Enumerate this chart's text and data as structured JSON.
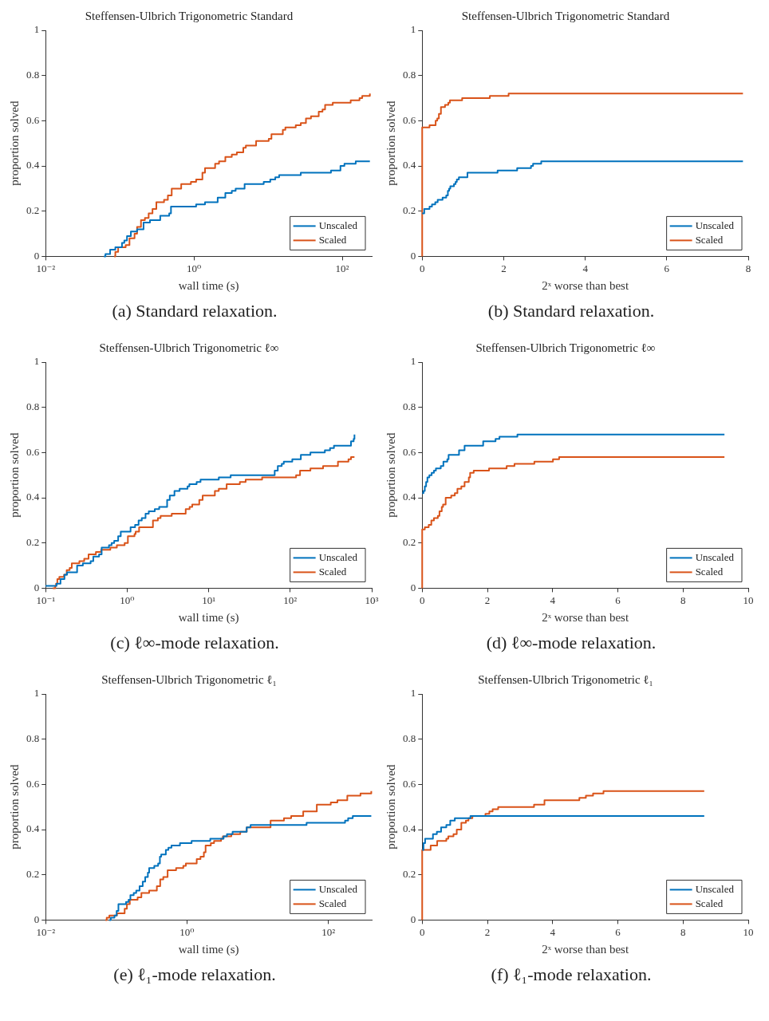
{
  "chart_data": [
    {
      "type": "step",
      "title": "Steffensen-Ulbrich Trigonometric Standard",
      "xlabel": "wall time (s)",
      "ylabel": "proportion solved",
      "log": "x",
      "xlim": [
        0.01,
        250
      ],
      "xticks": [
        {
          "value": 0.01,
          "label": "10⁻²"
        },
        {
          "value": 1,
          "label": "10⁰"
        },
        {
          "value": 100,
          "label": "10²"
        }
      ],
      "ylim": [
        0,
        1
      ],
      "yticks": [
        0,
        0.2,
        0.4,
        0.6,
        0.8,
        1
      ],
      "grid": false,
      "legend": "bottom right",
      "marker": "none",
      "line_style": "solid",
      "annotations": [
        "(a) Standard relaxation."
      ],
      "series": [
        {
          "name": "Unscaled",
          "color": "#0072bd",
          "x": [
            0.061,
            0.064,
            0.074,
            0.087,
            0.107,
            0.115,
            0.125,
            0.141,
            0.171,
            0.209,
            0.255,
            0.351,
            0.464,
            0.49,
            1.07,
            1.41,
            2.09,
            2.65,
            3.24,
            3.65,
            4.82,
            8.73,
            10.7,
            12.5,
            14.1,
            27.6,
            70.5,
            94.6,
            107,
            152,
            236
          ],
          "values": [
            0,
            0.01,
            0.03,
            0.04,
            0.06,
            0.07,
            0.09,
            0.11,
            0.12,
            0.15,
            0.16,
            0.18,
            0.19,
            0.22,
            0.23,
            0.24,
            0.26,
            0.28,
            0.29,
            0.3,
            0.32,
            0.33,
            0.34,
            0.35,
            0.36,
            0.37,
            0.38,
            0.4,
            0.41,
            0.42,
            0.42
          ]
        },
        {
          "name": "Scaled",
          "color": "#d95319",
          "x": [
            0.084,
            0.087,
            0.095,
            0.12,
            0.135,
            0.158,
            0.171,
            0.193,
            0.218,
            0.245,
            0.276,
            0.311,
            0.395,
            0.445,
            0.501,
            0.673,
            0.91,
            1.07,
            1.3,
            1.41,
            1.93,
            2.18,
            2.65,
            3.24,
            3.79,
            4.63,
            5.01,
            6.89,
            10.2,
            11.1,
            15.8,
            17.1,
            23.6,
            27.6,
            32.4,
            37.9,
            48.2,
            54.2,
            58.7,
            74.5,
            130,
            171,
            186,
            236
          ],
          "values": [
            0,
            0.02,
            0.04,
            0.05,
            0.08,
            0.1,
            0.13,
            0.16,
            0.17,
            0.19,
            0.21,
            0.24,
            0.25,
            0.27,
            0.3,
            0.32,
            0.33,
            0.34,
            0.37,
            0.39,
            0.41,
            0.42,
            0.44,
            0.45,
            0.46,
            0.48,
            0.49,
            0.51,
            0.52,
            0.54,
            0.56,
            0.57,
            0.58,
            0.59,
            0.61,
            0.62,
            0.64,
            0.65,
            0.67,
            0.68,
            0.69,
            0.7,
            0.71,
            0.72
          ]
        }
      ]
    },
    {
      "type": "step",
      "title": "Steffensen-Ulbrich Trigonometric Standard",
      "xlabel": "2ˣ worse than best",
      "ylabel": "proportion solved",
      "xlim": [
        0,
        8
      ],
      "xticks": [
        0,
        2,
        4,
        6,
        8
      ],
      "ylim": [
        0,
        1
      ],
      "yticks": [
        0,
        0.2,
        0.4,
        0.6,
        0.8,
        1
      ],
      "grid": false,
      "legend": "bottom right",
      "marker": "none",
      "line_style": "solid",
      "annotations": [
        "(b) Standard relaxation."
      ],
      "series": [
        {
          "name": "Unscaled",
          "color": "#0072bd",
          "x": [
            0,
            0.05,
            0.18,
            0.24,
            0.32,
            0.38,
            0.5,
            0.59,
            0.63,
            0.66,
            0.69,
            0.78,
            0.82,
            0.85,
            0.9,
            1.11,
            1.85,
            2.33,
            2.67,
            2.72,
            2.92,
            7.87
          ],
          "values": [
            0.19,
            0.21,
            0.22,
            0.23,
            0.24,
            0.25,
            0.26,
            0.27,
            0.29,
            0.3,
            0.31,
            0.32,
            0.33,
            0.34,
            0.35,
            0.37,
            0.38,
            0.39,
            0.4,
            0.41,
            0.42,
            0.42
          ]
        },
        {
          "name": "Scaled",
          "color": "#d95319",
          "x": [
            0,
            0,
            0.18,
            0.33,
            0.37,
            0.41,
            0.46,
            0.56,
            0.64,
            0.68,
            0.98,
            1.66,
            2.12,
            7.87
          ],
          "values": [
            0,
            0.57,
            0.58,
            0.6,
            0.61,
            0.63,
            0.66,
            0.67,
            0.68,
            0.69,
            0.7,
            0.71,
            0.72,
            0.72
          ]
        }
      ]
    },
    {
      "type": "step",
      "title": "Steffensen-Ulbrich Trigonometric ℓ∞",
      "xlabel": "wall time (s)",
      "ylabel": "proportion solved",
      "log": "x",
      "xlim": [
        0.1,
        1000
      ],
      "xticks": [
        {
          "value": 0.1,
          "label": "10⁻¹"
        },
        {
          "value": 1,
          "label": "10⁰"
        },
        {
          "value": 10,
          "label": "10¹"
        },
        {
          "value": 100,
          "label": "10²"
        },
        {
          "value": 1000,
          "label": "10³"
        }
      ],
      "ylim": [
        0,
        1
      ],
      "yticks": [
        0,
        0.2,
        0.4,
        0.6,
        0.8,
        1
      ],
      "grid": false,
      "legend": "bottom right",
      "marker": "none",
      "line_style": "solid",
      "annotations": [
        "(c) ℓ∞-mode relaxation."
      ],
      "series": [
        {
          "name": "Unscaled",
          "color": "#0072bd",
          "x": [
            0.1,
            0.136,
            0.152,
            0.17,
            0.183,
            0.243,
            0.286,
            0.356,
            0.384,
            0.452,
            0.486,
            0.598,
            0.644,
            0.693,
            0.775,
            0.834,
            1.1,
            1.25,
            1.38,
            1.51,
            1.68,
            1.84,
            2.18,
            2.47,
            3.09,
            3.33,
            3.8,
            4.4,
            5.5,
            5.79,
            7.11,
            7.94,
            13.3,
            18.6,
            64.5,
            70.4,
            78.7,
            83.4,
            106,
            135,
            177,
            266,
            308,
            344,
            557,
            600,
            614
          ],
          "values": [
            0.01,
            0.02,
            0.04,
            0.06,
            0.07,
            0.1,
            0.11,
            0.12,
            0.14,
            0.15,
            0.18,
            0.19,
            0.2,
            0.21,
            0.23,
            0.25,
            0.27,
            0.28,
            0.3,
            0.31,
            0.33,
            0.34,
            0.35,
            0.36,
            0.39,
            0.41,
            0.43,
            0.44,
            0.45,
            0.46,
            0.47,
            0.48,
            0.49,
            0.5,
            0.52,
            0.54,
            0.55,
            0.56,
            0.57,
            0.59,
            0.6,
            0.61,
            0.62,
            0.63,
            0.65,
            0.66,
            0.68
          ]
        },
        {
          "name": "Scaled",
          "color": "#d95319",
          "x": [
            0.122,
            0.131,
            0.134,
            0.139,
            0.147,
            0.168,
            0.181,
            0.197,
            0.209,
            0.259,
            0.297,
            0.336,
            0.413,
            0.479,
            0.621,
            0.747,
            0.931,
            1.02,
            1.23,
            1.27,
            1.4,
            2.07,
            2.38,
            2.57,
            3.52,
            5.22,
            5.83,
            6.28,
            7.66,
            8.43,
            11.9,
            13.3,
            16.6,
            24.1,
            28.4,
            45.2,
            118,
            132,
            177,
            253,
            385,
            518,
            557,
            614
          ],
          "values": [
            0,
            0.01,
            0.02,
            0.04,
            0.05,
            0.06,
            0.08,
            0.09,
            0.11,
            0.12,
            0.13,
            0.15,
            0.16,
            0.17,
            0.18,
            0.19,
            0.2,
            0.23,
            0.24,
            0.25,
            0.27,
            0.3,
            0.31,
            0.32,
            0.33,
            0.35,
            0.36,
            0.37,
            0.39,
            0.41,
            0.43,
            0.44,
            0.46,
            0.47,
            0.48,
            0.49,
            0.5,
            0.52,
            0.53,
            0.54,
            0.56,
            0.57,
            0.58,
            0.58
          ]
        }
      ]
    },
    {
      "type": "step",
      "title": "Steffensen-Ulbrich Trigonometric ℓ∞",
      "xlabel": "2ˣ worse than best",
      "ylabel": "proportion solved",
      "xlim": [
        0,
        10
      ],
      "xticks": [
        0,
        2,
        4,
        6,
        8,
        10
      ],
      "ylim": [
        0,
        1
      ],
      "yticks": [
        0,
        0.2,
        0.4,
        0.6,
        0.8,
        1
      ],
      "grid": false,
      "legend": "bottom right",
      "marker": "none",
      "line_style": "solid",
      "annotations": [
        "(d) ℓ∞-mode relaxation."
      ],
      "series": [
        {
          "name": "Unscaled",
          "color": "#0072bd",
          "x": [
            0,
            0.04,
            0.08,
            0.12,
            0.16,
            0.22,
            0.29,
            0.36,
            0.42,
            0.57,
            0.65,
            0.77,
            0.81,
            1.13,
            1.3,
            1.87,
            2.25,
            2.37,
            2.92,
            9.27
          ],
          "values": [
            0.42,
            0.43,
            0.45,
            0.47,
            0.49,
            0.5,
            0.51,
            0.52,
            0.53,
            0.54,
            0.56,
            0.57,
            0.59,
            0.61,
            0.63,
            0.65,
            0.66,
            0.67,
            0.68,
            0.68
          ]
        },
        {
          "name": "Scaled",
          "color": "#d95319",
          "x": [
            0,
            0,
            0.08,
            0.2,
            0.28,
            0.36,
            0.48,
            0.53,
            0.6,
            0.64,
            0.72,
            0.89,
            1,
            1.08,
            1.2,
            1.3,
            1.43,
            1.47,
            1.58,
            2.05,
            2.59,
            2.83,
            3.44,
            4.01,
            4.2,
            9.27
          ],
          "values": [
            0,
            0.26,
            0.27,
            0.28,
            0.3,
            0.31,
            0.32,
            0.34,
            0.36,
            0.37,
            0.4,
            0.41,
            0.42,
            0.44,
            0.45,
            0.47,
            0.49,
            0.51,
            0.52,
            0.53,
            0.54,
            0.55,
            0.56,
            0.57,
            0.58,
            0.58
          ]
        }
      ]
    },
    {
      "type": "step",
      "title": "Steffensen-Ulbrich Trigonometric ℓ₁",
      "xlabel": "wall time (s)",
      "ylabel": "proportion solved",
      "log": "x",
      "xlim": [
        0.01,
        410
      ],
      "xticks": [
        {
          "value": 0.01,
          "label": "10⁻²"
        },
        {
          "value": 1,
          "label": "10⁰"
        },
        {
          "value": 100,
          "label": "10²"
        }
      ],
      "ylim": [
        0,
        1
      ],
      "yticks": [
        0,
        0.2,
        0.4,
        0.6,
        0.8,
        1
      ],
      "grid": false,
      "legend": "bottom right",
      "marker": "none",
      "line_style": "solid",
      "annotations": [
        "(e) ℓ₁-mode relaxation."
      ],
      "series": [
        {
          "name": "Unscaled",
          "color": "#0072bd",
          "x": [
            0.0796,
            0.0833,
            0.0941,
            0.101,
            0.107,
            0.137,
            0.149,
            0.158,
            0.176,
            0.191,
            0.213,
            0.236,
            0.256,
            0.279,
            0.291,
            0.344,
            0.39,
            0.413,
            0.431,
            0.501,
            0.545,
            0.602,
            0.794,
            1.16,
            2.13,
            3.29,
            3.67,
            4.41,
            6.98,
            7.92,
            49.1,
            172,
            190,
            221,
            404
          ],
          "values": [
            0,
            0.01,
            0.02,
            0.04,
            0.07,
            0.08,
            0.09,
            0.11,
            0.12,
            0.13,
            0.15,
            0.17,
            0.19,
            0.21,
            0.23,
            0.24,
            0.25,
            0.28,
            0.29,
            0.31,
            0.32,
            0.33,
            0.34,
            0.35,
            0.36,
            0.37,
            0.38,
            0.39,
            0.41,
            0.42,
            0.43,
            0.44,
            0.45,
            0.46,
            0.46
          ]
        },
        {
          "name": "Scaled",
          "color": "#d95319",
          "x": [
            0.0701,
            0.073,
            0.0796,
            0.102,
            0.131,
            0.141,
            0.155,
            0.2,
            0.226,
            0.291,
            0.374,
            0.417,
            0.461,
            0.531,
            0.7,
            0.885,
            0.962,
            1.37,
            1.55,
            1.73,
            1.83,
            2.17,
            2.41,
            3.03,
            3.21,
            4.23,
            5.66,
            6.98,
            15.2,
            23.5,
            29.7,
            44,
            68.5,
            108,
            134,
            185,
            284,
            404
          ],
          "values": [
            0,
            0.01,
            0.02,
            0.03,
            0.05,
            0.07,
            0.09,
            0.1,
            0.12,
            0.13,
            0.15,
            0.18,
            0.19,
            0.22,
            0.23,
            0.24,
            0.25,
            0.27,
            0.28,
            0.3,
            0.33,
            0.34,
            0.35,
            0.36,
            0.37,
            0.38,
            0.39,
            0.41,
            0.44,
            0.45,
            0.46,
            0.48,
            0.51,
            0.52,
            0.53,
            0.55,
            0.56,
            0.57
          ]
        }
      ]
    },
    {
      "type": "step",
      "title": "Steffensen-Ulbrich Trigonometric ℓ₁",
      "xlabel": "2ˣ worse than best",
      "ylabel": "proportion solved",
      "xlim": [
        0,
        10
      ],
      "xticks": [
        0,
        2,
        4,
        6,
        8,
        10
      ],
      "ylim": [
        0,
        1
      ],
      "yticks": [
        0,
        0.2,
        0.4,
        0.6,
        0.8,
        1
      ],
      "grid": false,
      "legend": "bottom right",
      "marker": "none",
      "line_style": "solid",
      "annotations": [
        "(f) ℓ₁-mode relaxation."
      ],
      "series": [
        {
          "name": "Unscaled",
          "color": "#0072bd",
          "x": [
            0,
            0.04,
            0.09,
            0.33,
            0.45,
            0.58,
            0.74,
            0.86,
            1,
            1.48,
            8.65
          ],
          "values": [
            0.31,
            0.34,
            0.36,
            0.38,
            0.39,
            0.41,
            0.42,
            0.44,
            0.45,
            0.46,
            0.46
          ]
        },
        {
          "name": "Scaled",
          "color": "#d95319",
          "x": [
            0,
            0,
            0.26,
            0.46,
            0.74,
            0.8,
            0.96,
            1.06,
            1.2,
            1.34,
            1.42,
            1.54,
            1.94,
            2.06,
            2.16,
            2.33,
            3.43,
            3.75,
            4.82,
            5.02,
            5.24,
            5.56,
            8.65
          ],
          "values": [
            0,
            0.31,
            0.33,
            0.35,
            0.36,
            0.37,
            0.38,
            0.4,
            0.43,
            0.44,
            0.45,
            0.46,
            0.47,
            0.48,
            0.49,
            0.5,
            0.51,
            0.53,
            0.54,
            0.55,
            0.56,
            0.57,
            0.57
          ]
        }
      ]
    }
  ]
}
